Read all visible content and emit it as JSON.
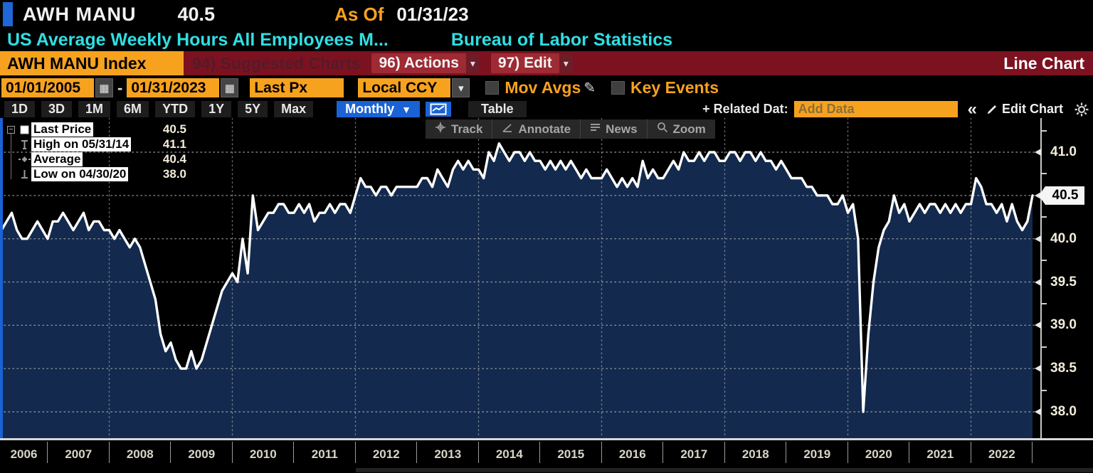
{
  "header": {
    "ticker": "AWH MANU",
    "last_value": "40.5",
    "as_of_label": "As Of",
    "as_of_date": "01/31/23",
    "subtitle": "US Average Weekly Hours All Employees M...",
    "source": "Bureau of Labor Statistics"
  },
  "toolbar": {
    "security_button": "AWH MANU Index",
    "suggested_charts": "94) Suggested Charts",
    "actions": "96) Actions",
    "edit": "97) Edit",
    "chart_type": "Line Chart"
  },
  "controls": {
    "date_from": "01/01/2005",
    "date_to": "01/31/2023",
    "field": "Last Px",
    "currency": "Local CCY",
    "mov_avgs_label": "Mov Avgs",
    "key_events_label": "Key Events"
  },
  "range_bar": {
    "tabs": [
      "1D",
      "3D",
      "1M",
      "6M",
      "YTD",
      "1Y",
      "5Y",
      "Max"
    ],
    "frequency": "Monthly",
    "table_label": "Table",
    "related_data_label": "+ Related Dat:",
    "add_data_placeholder": "Add Data",
    "collapse_label": "«",
    "edit_chart_label": "Edit Chart"
  },
  "chart_tools": [
    {
      "icon": "track",
      "label": "Track"
    },
    {
      "icon": "annotate",
      "label": "Annotate"
    },
    {
      "icon": "news",
      "label": "News"
    },
    {
      "icon": "zoom",
      "label": "Zoom"
    }
  ],
  "legend": {
    "rows": [
      {
        "marker": "square",
        "label": "Last Price",
        "value": "40.5"
      },
      {
        "marker": "high",
        "label": "High on 05/31/14",
        "value": "41.1"
      },
      {
        "marker": "average",
        "label": "Average",
        "value": "40.4"
      },
      {
        "marker": "low",
        "label": "Low on 04/30/20",
        "value": "38.0"
      }
    ]
  },
  "colors": {
    "amber": "#f7a21f",
    "maroon_bar": "#7c1220",
    "blue_accent": "#1a63d6",
    "cyan_text": "#30dfe4",
    "line": "#ffffff",
    "area_fill": "#132a4e",
    "grid": "#b0b0b0"
  },
  "chart_data": {
    "type": "line",
    "title": "US Average Weekly Hours All Employees Manufacturing",
    "source": "Bureau of Labor Statistics",
    "frequency": "monthly",
    "start": "2006-03",
    "end": "2023-01",
    "last_price": {
      "value": 40.5,
      "label": "40.5"
    },
    "ylim": [
      37.7,
      41.4
    ],
    "yaxis": {
      "tick_values": [
        41.0,
        40.5,
        40.0,
        39.5,
        39.0,
        38.5,
        38.0
      ],
      "tick_labels": [
        "41.0",
        "40.5",
        "40.0",
        "39.5",
        "39.0",
        "38.5",
        "38.0"
      ],
      "minor_ticks": [
        41.25,
        40.75,
        40.25,
        39.75,
        39.25,
        38.75,
        38.25
      ]
    },
    "xaxis": {
      "years": [
        2006,
        2007,
        2008,
        2009,
        2010,
        2011,
        2012,
        2013,
        2014,
        2015,
        2016,
        2017,
        2018,
        2019,
        2020,
        2021,
        2022
      ],
      "gridline_years": [
        2008,
        2010,
        2012,
        2014,
        2016,
        2018,
        2020,
        2022
      ]
    },
    "series": [
      {
        "name": "Last Price",
        "values": [
          39.9,
          40.1,
          40.2,
          40.3,
          40.1,
          40.0,
          40.0,
          40.1,
          40.2,
          40.1,
          40.0,
          40.2,
          40.2,
          40.3,
          40.2,
          40.1,
          40.2,
          40.3,
          40.1,
          40.2,
          40.2,
          40.1,
          40.1,
          40.0,
          40.1,
          40.0,
          39.9,
          40.0,
          39.9,
          39.7,
          39.5,
          39.3,
          38.9,
          38.7,
          38.8,
          38.6,
          38.5,
          38.5,
          38.7,
          38.5,
          38.6,
          38.8,
          39.0,
          39.2,
          39.4,
          39.5,
          39.6,
          39.5,
          40.0,
          39.6,
          40.5,
          40.1,
          40.2,
          40.3,
          40.3,
          40.4,
          40.4,
          40.3,
          40.3,
          40.4,
          40.3,
          40.4,
          40.2,
          40.3,
          40.3,
          40.4,
          40.3,
          40.4,
          40.4,
          40.3,
          40.5,
          40.7,
          40.6,
          40.6,
          40.5,
          40.6,
          40.6,
          40.5,
          40.6,
          40.6,
          40.6,
          40.6,
          40.6,
          40.7,
          40.7,
          40.6,
          40.8,
          40.7,
          40.6,
          40.8,
          40.9,
          40.8,
          40.9,
          40.8,
          40.8,
          40.7,
          41.0,
          40.9,
          41.1,
          41.0,
          40.9,
          41.0,
          41.0,
          40.9,
          41.0,
          40.9,
          40.9,
          40.8,
          40.9,
          40.8,
          40.9,
          40.8,
          40.9,
          40.8,
          40.7,
          40.8,
          40.7,
          40.7,
          40.7,
          40.8,
          40.7,
          40.6,
          40.7,
          40.6,
          40.7,
          40.6,
          40.9,
          40.7,
          40.8,
          40.7,
          40.7,
          40.8,
          40.9,
          40.8,
          41.0,
          40.9,
          40.9,
          41.0,
          40.9,
          41.0,
          41.0,
          40.9,
          40.9,
          41.0,
          41.0,
          40.9,
          41.0,
          41.0,
          40.9,
          41.0,
          40.9,
          40.9,
          40.8,
          40.9,
          40.8,
          40.7,
          40.7,
          40.7,
          40.6,
          40.6,
          40.5,
          40.5,
          40.5,
          40.4,
          40.4,
          40.5,
          40.3,
          40.4,
          40.0,
          38.0,
          38.9,
          39.5,
          39.9,
          40.1,
          40.2,
          40.5,
          40.3,
          40.4,
          40.2,
          40.3,
          40.4,
          40.3,
          40.4,
          40.4,
          40.3,
          40.4,
          40.3,
          40.4,
          40.3,
          40.4,
          40.4,
          40.7,
          40.6,
          40.4,
          40.4,
          40.3,
          40.4,
          40.2,
          40.4,
          40.2,
          40.1,
          40.2,
          40.5
        ]
      }
    ]
  }
}
